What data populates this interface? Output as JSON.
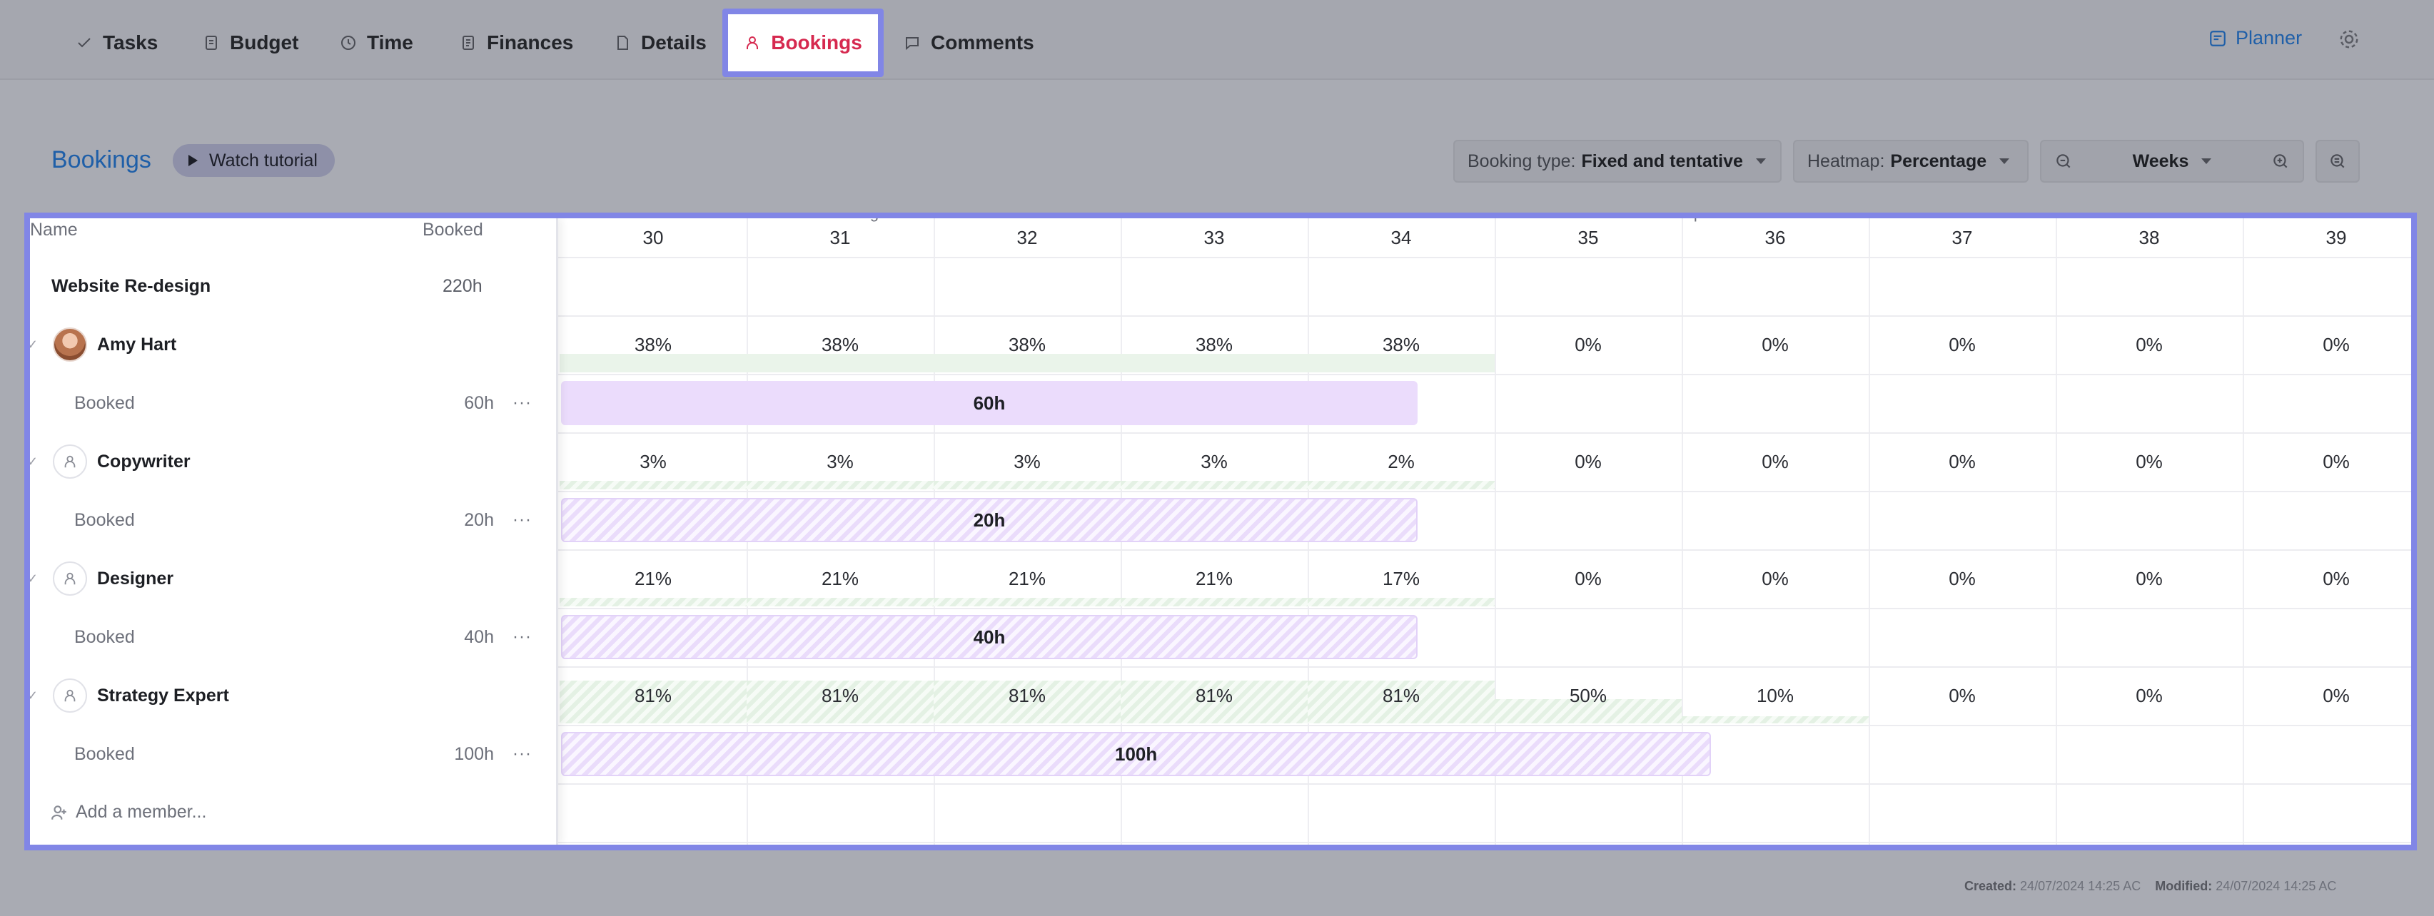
{
  "tabs": [
    {
      "label": "Tasks",
      "icon": "check-icon"
    },
    {
      "label": "Budget",
      "icon": "budget-icon"
    },
    {
      "label": "Time",
      "icon": "clock-icon"
    },
    {
      "label": "Finances",
      "icon": "finances-icon"
    },
    {
      "label": "Details",
      "icon": "document-icon"
    },
    {
      "label": "Bookings",
      "icon": "person-icon",
      "active": true
    },
    {
      "label": "Comments",
      "icon": "comment-icon"
    }
  ],
  "planner_label": "Planner",
  "toolbar": {
    "title": "Bookings",
    "watch_label": "Watch tutorial",
    "booking_type_label": "Booking type:",
    "booking_type_value": "Fixed and tentative",
    "heatmap_label": "Heatmap:",
    "heatmap_value": "Percentage",
    "zoom_value": "Weeks"
  },
  "columns": {
    "name": "Name",
    "booked": "Booked"
  },
  "months": [
    "August",
    "September"
  ],
  "weeks": [
    "30",
    "31",
    "32",
    "33",
    "34",
    "35",
    "36",
    "37",
    "38",
    "39"
  ],
  "project": {
    "name": "Website Re-design",
    "hours": "220h"
  },
  "members": [
    {
      "name": "Amy Hart",
      "type": "photo",
      "booked_label": "Booked",
      "booked_hours": "60h",
      "bar_label": "60h",
      "percents": [
        "38%",
        "38%",
        "38%",
        "38%",
        "38%",
        "0%",
        "0%",
        "0%",
        "0%",
        "0%"
      ]
    },
    {
      "name": "Copywriter",
      "type": "role",
      "booked_label": "Booked",
      "booked_hours": "20h",
      "bar_label": "20h",
      "percents": [
        "3%",
        "3%",
        "3%",
        "3%",
        "2%",
        "0%",
        "0%",
        "0%",
        "0%",
        "0%"
      ]
    },
    {
      "name": "Designer",
      "type": "role",
      "booked_label": "Booked",
      "booked_hours": "40h",
      "bar_label": "40h",
      "percents": [
        "21%",
        "21%",
        "21%",
        "21%",
        "17%",
        "0%",
        "0%",
        "0%",
        "0%",
        "0%"
      ]
    },
    {
      "name": "Strategy Expert",
      "type": "role",
      "booked_label": "Booked",
      "booked_hours": "100h",
      "bar_label": "100h",
      "percents": [
        "81%",
        "81%",
        "81%",
        "81%",
        "81%",
        "50%",
        "10%",
        "0%",
        "0%",
        "0%"
      ]
    }
  ],
  "add_member_label": "Add a member...",
  "footer": {
    "created_label": "Created:",
    "created_value": "24/07/2024 14:25 AC",
    "modified_label": "Modified:",
    "modified_value": "24/07/2024 14:25 AC"
  }
}
